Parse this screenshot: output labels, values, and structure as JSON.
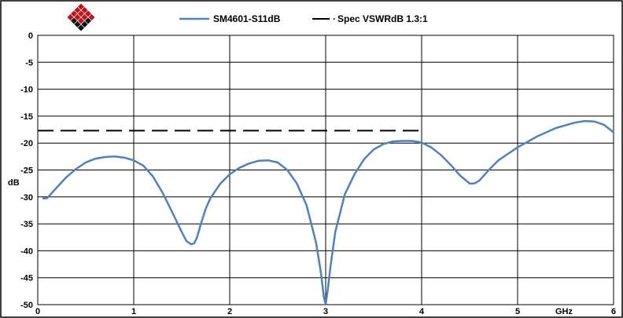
{
  "logo": {
    "name": "diamond-logo",
    "colors": [
      "#c0141c",
      "#111111"
    ]
  },
  "chart_data": {
    "type": "line",
    "xlabel": "GHz",
    "ylabel": "dB",
    "xlim": [
      0,
      6
    ],
    "ylim": [
      -50,
      0
    ],
    "x_ticks": [
      "0",
      "1",
      "2",
      "3",
      "4",
      "5",
      "6"
    ],
    "y_ticks": [
      "0",
      "-5",
      "-10",
      "-15",
      "-20",
      "-25",
      "-30",
      "-35",
      "-40",
      "-45",
      "-50"
    ],
    "grid": true,
    "legend_placement": "top",
    "series": [
      {
        "name": "SM4601-S11dB",
        "color": "#4f81bd",
        "style": "solid",
        "x": [
          0.05,
          0.1,
          0.2,
          0.3,
          0.4,
          0.5,
          0.6,
          0.7,
          0.8,
          0.9,
          1.0,
          1.1,
          1.2,
          1.3,
          1.4,
          1.5,
          1.55,
          1.6,
          1.63,
          1.66,
          1.7,
          1.75,
          1.8,
          1.9,
          2.0,
          2.1,
          2.2,
          2.3,
          2.4,
          2.5,
          2.6,
          2.7,
          2.8,
          2.9,
          2.95,
          2.98,
          3.0,
          3.02,
          3.05,
          3.1,
          3.2,
          3.3,
          3.4,
          3.5,
          3.6,
          3.7,
          3.8,
          3.9,
          4.0,
          4.1,
          4.2,
          4.3,
          4.4,
          4.5,
          4.55,
          4.6,
          4.7,
          4.8,
          4.9,
          5.0,
          5.2,
          5.4,
          5.6,
          5.7,
          5.8,
          5.9,
          6.0
        ],
        "y": [
          -30.3,
          -30.2,
          -28.2,
          -26.3,
          -24.8,
          -23.6,
          -22.9,
          -22.6,
          -22.5,
          -22.7,
          -23.2,
          -24.2,
          -26.2,
          -29.2,
          -32.8,
          -36.5,
          -38.2,
          -38.8,
          -38.6,
          -37.5,
          -35.0,
          -32.2,
          -30.2,
          -27.6,
          -25.8,
          -24.6,
          -23.8,
          -23.3,
          -23.2,
          -23.6,
          -25.0,
          -27.5,
          -31.5,
          -38.5,
          -44.0,
          -48.5,
          -50.0,
          -47.5,
          -43.0,
          -36.5,
          -29.5,
          -25.8,
          -23.0,
          -21.2,
          -20.2,
          -19.7,
          -19.6,
          -19.6,
          -19.9,
          -20.8,
          -22.2,
          -24.0,
          -26.0,
          -27.5,
          -27.5,
          -27.0,
          -25.0,
          -23.2,
          -22.0,
          -20.8,
          -18.8,
          -17.2,
          -16.2,
          -15.9,
          -16.0,
          -16.6,
          -18.0
        ]
      },
      {
        "name": "Spec VSWRdB 1.3:1",
        "color": "#000000",
        "style": "dashed",
        "x": [
          0.0,
          4.0
        ],
        "y": [
          -17.7,
          -17.7
        ]
      }
    ]
  }
}
